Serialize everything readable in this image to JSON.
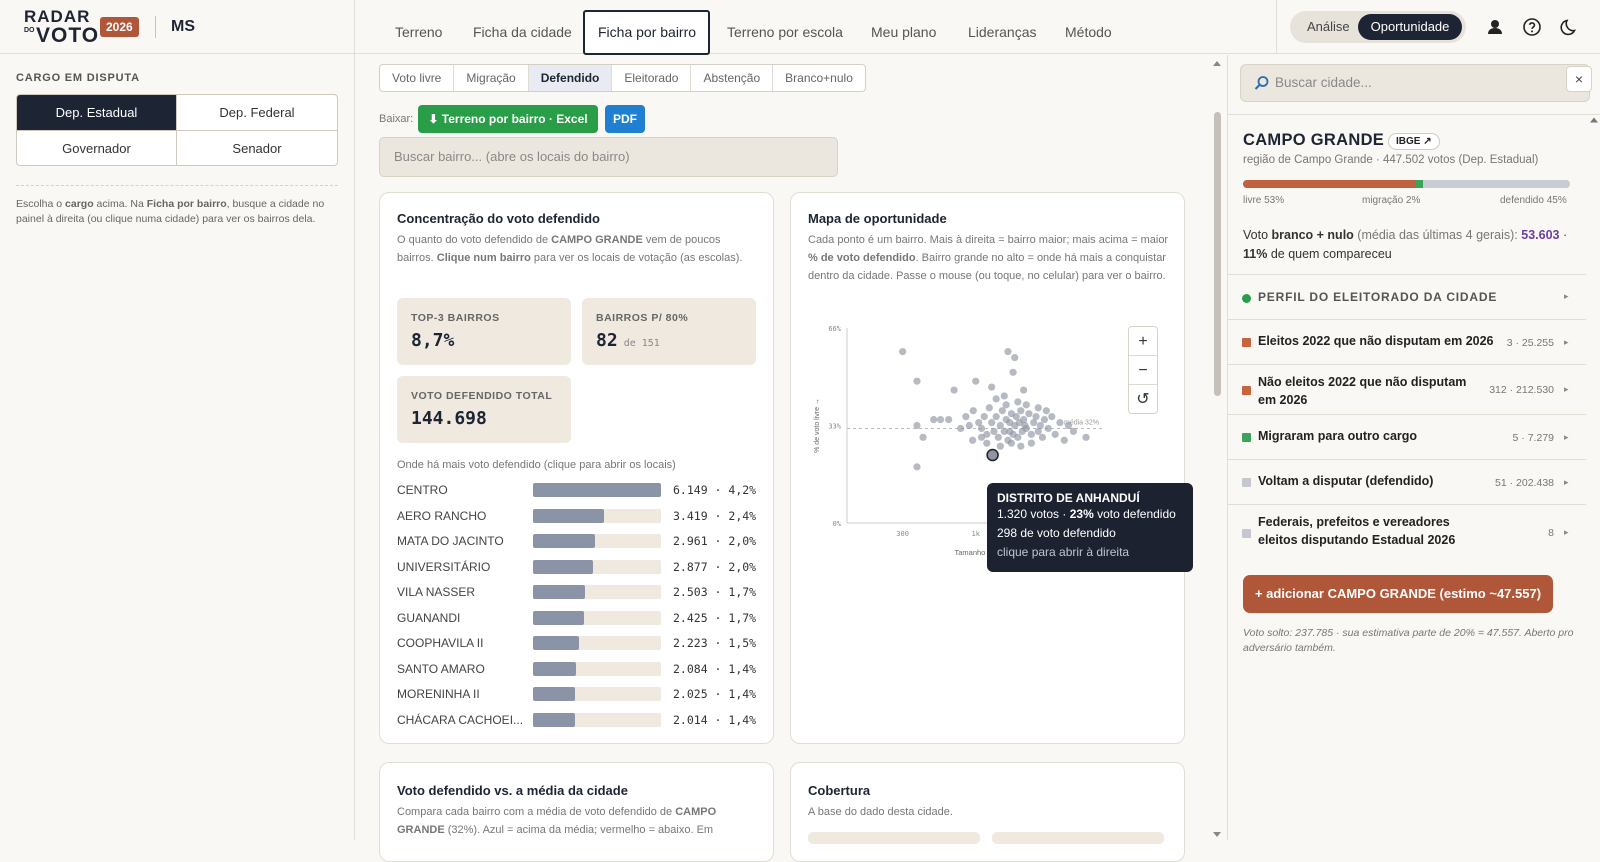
{
  "brand": {
    "logo_line1": "RADAR",
    "logo_line2": "VOTO",
    "logo_small": "DO",
    "year": "2026",
    "state": "MS"
  },
  "nav": {
    "tabs": [
      "Terreno",
      "Ficha da cidade",
      "Ficha por bairro",
      "Terreno por escola",
      "Meu plano",
      "Lideranças",
      "Método"
    ],
    "active": "Ficha por bairro"
  },
  "mode": {
    "option_a": "Análise",
    "option_b": "Oportunidade",
    "selected": "Oportunidade"
  },
  "left": {
    "cargo_heading": "CARGO EM DISPUTA",
    "cargos": [
      "Dep. Estadual",
      "Dep. Federal",
      "Governador",
      "Senador"
    ],
    "cargo_selected": "Dep. Estadual",
    "note_parts": [
      "Escolha o ",
      "cargo",
      " acima. Na ",
      "Ficha por bairro",
      ", busque a cidade no painel à direita (ou clique numa cidade) para ver os bairros dela."
    ]
  },
  "subtabs": {
    "items": [
      "Voto livre",
      "Migração",
      "Defendido",
      "Eleitorado",
      "Abstenção",
      "Branco+nulo"
    ],
    "active": "Defendido"
  },
  "download": {
    "label": "Baixar:",
    "excel": "⬇ Terreno por bairro · Excel",
    "pdf": "PDF"
  },
  "bairro_search": {
    "placeholder": "Buscar bairro... (abre os locais do bairro)"
  },
  "concentracao": {
    "title": "Concentração do voto defendido",
    "desc_parts": [
      "O quanto do voto defendido de ",
      "CAMPO GRANDE",
      " vem de poucos bairros. ",
      "Clique num bairro",
      " para ver os locais de votação (as escolas)."
    ],
    "stats": [
      {
        "label": "TOP-3 BAIRROS",
        "value": "8,7%",
        "sub": ""
      },
      {
        "label": "BAIRROS P/ 80%",
        "value": "82",
        "sub": "de 151"
      },
      {
        "label": "VOTO DEFENDIDO TOTAL",
        "value": "144.698",
        "sub": ""
      }
    ],
    "list_heading": "Onde há mais voto defendido (clique para abrir os locais)",
    "bairros": [
      {
        "name": "CENTRO",
        "votes": "6.149",
        "pct": "4,2%",
        "value": 6149
      },
      {
        "name": "AERO RANCHO",
        "votes": "3.419",
        "pct": "2,4%",
        "value": 3419
      },
      {
        "name": "MATA DO JACINTO",
        "votes": "2.961",
        "pct": "2,0%",
        "value": 2961
      },
      {
        "name": "UNIVERSITÁRIO",
        "votes": "2.877",
        "pct": "2,0%",
        "value": 2877
      },
      {
        "name": "VILA NASSER",
        "votes": "2.503",
        "pct": "1,7%",
        "value": 2503
      },
      {
        "name": "GUANANDI",
        "votes": "2.425",
        "pct": "1,7%",
        "value": 2425
      },
      {
        "name": "COOPHAVILA II",
        "votes": "2.223",
        "pct": "1,5%",
        "value": 2223
      },
      {
        "name": "SANTO AMARO",
        "votes": "2.084",
        "pct": "1,4%",
        "value": 2084
      },
      {
        "name": "MORENINHA II",
        "votes": "2.025",
        "pct": "1,4%",
        "value": 2025
      },
      {
        "name": "CHÁCARA CACHOEI...",
        "votes": "2.014",
        "pct": "1,4%",
        "value": 2014
      }
    ]
  },
  "mapa": {
    "title": "Mapa de oportunidade",
    "desc_parts": [
      "Cada ponto é um bairro. Mais à direita = bairro maior; mais acima = maior ",
      "% de voto defendido",
      ". Bairro grande no alto = onde há mais a conquistar dentro da cidade. Passe o mouse (ou toque, no celular) para ver o bairro."
    ],
    "zoom_in": "+",
    "zoom_out": "−",
    "reset": "↺"
  },
  "chart_data": {
    "type": "scatter",
    "x_scale": "log",
    "xlabel": "Tamanho do b",
    "ylabel": "% de voto livre →",
    "x_ticks": [
      "300",
      "1k"
    ],
    "y_ticks": [
      "0%",
      "33%",
      "66%"
    ],
    "ylim": [
      0,
      66
    ],
    "reference_line": {
      "y": 32,
      "label": "média 32%"
    },
    "points": [
      {
        "x": 300,
        "y": 58
      },
      {
        "x": 380,
        "y": 48
      },
      {
        "x": 700,
        "y": 45
      },
      {
        "x": 1700,
        "y": 58
      },
      {
        "x": 1900,
        "y": 56
      },
      {
        "x": 1850,
        "y": 51
      },
      {
        "x": 1000,
        "y": 48
      },
      {
        "x": 1300,
        "y": 46
      },
      {
        "x": 1600,
        "y": 43
      },
      {
        "x": 2200,
        "y": 45
      },
      {
        "x": 500,
        "y": 35
      },
      {
        "x": 420,
        "y": 29
      },
      {
        "x": 380,
        "y": 33
      },
      {
        "x": 560,
        "y": 35
      },
      {
        "x": 640,
        "y": 35
      },
      {
        "x": 780,
        "y": 32
      },
      {
        "x": 850,
        "y": 36
      },
      {
        "x": 900,
        "y": 33
      },
      {
        "x": 960,
        "y": 38
      },
      {
        "x": 1050,
        "y": 34
      },
      {
        "x": 1100,
        "y": 32
      },
      {
        "x": 1150,
        "y": 36
      },
      {
        "x": 1200,
        "y": 30
      },
      {
        "x": 1250,
        "y": 39
      },
      {
        "x": 1300,
        "y": 34
      },
      {
        "x": 1350,
        "y": 31
      },
      {
        "x": 1400,
        "y": 36
      },
      {
        "x": 1450,
        "y": 29
      },
      {
        "x": 1500,
        "y": 33
      },
      {
        "x": 1550,
        "y": 38
      },
      {
        "x": 1600,
        "y": 31
      },
      {
        "x": 1650,
        "y": 35
      },
      {
        "x": 1700,
        "y": 28
      },
      {
        "x": 1750,
        "y": 34
      },
      {
        "x": 1800,
        "y": 37
      },
      {
        "x": 1850,
        "y": 30
      },
      {
        "x": 1900,
        "y": 33
      },
      {
        "x": 1950,
        "y": 36
      },
      {
        "x": 2000,
        "y": 29
      },
      {
        "x": 2050,
        "y": 34
      },
      {
        "x": 2100,
        "y": 38
      },
      {
        "x": 2150,
        "y": 31
      },
      {
        "x": 2200,
        "y": 35
      },
      {
        "x": 2300,
        "y": 32
      },
      {
        "x": 2400,
        "y": 37
      },
      {
        "x": 2500,
        "y": 30
      },
      {
        "x": 2600,
        "y": 34
      },
      {
        "x": 2700,
        "y": 36
      },
      {
        "x": 2800,
        "y": 31
      },
      {
        "x": 2900,
        "y": 33
      },
      {
        "x": 3000,
        "y": 29
      },
      {
        "x": 3100,
        "y": 35
      },
      {
        "x": 3300,
        "y": 32
      },
      {
        "x": 3500,
        "y": 36
      },
      {
        "x": 3700,
        "y": 30
      },
      {
        "x": 4000,
        "y": 34
      },
      {
        "x": 4300,
        "y": 28
      },
      {
        "x": 4600,
        "y": 33
      },
      {
        "x": 5000,
        "y": 31
      },
      {
        "x": 6149,
        "y": 29
      },
      {
        "x": 1200,
        "y": 27
      },
      {
        "x": 1500,
        "y": 26
      },
      {
        "x": 1800,
        "y": 27
      },
      {
        "x": 2100,
        "y": 26
      },
      {
        "x": 2500,
        "y": 27
      },
      {
        "x": 950,
        "y": 28
      },
      {
        "x": 1100,
        "y": 29
      },
      {
        "x": 1650,
        "y": 40
      },
      {
        "x": 2000,
        "y": 41
      },
      {
        "x": 2300,
        "y": 40
      },
      {
        "x": 1400,
        "y": 42
      },
      {
        "x": 2800,
        "y": 39
      },
      {
        "x": 3200,
        "y": 38
      },
      {
        "x": 1750,
        "y": 31
      },
      {
        "x": 2250,
        "y": 33
      },
      {
        "x": 380,
        "y": 19
      },
      {
        "x": 1320,
        "y": 23
      }
    ],
    "highlight": {
      "name": "DISTRITO DE ANHANDUÍ",
      "x": 1320,
      "y": 23
    }
  },
  "tooltip": {
    "title": "DISTRITO DE ANHANDUÍ",
    "line1_a": "1.320 votos · ",
    "line1_b": "23%",
    "line1_c": " voto defendido",
    "line2": "298 de voto defendido",
    "line3": "clique para abrir à direita"
  },
  "media_card": {
    "title": "Voto defendido vs. a média da cidade",
    "desc_parts": [
      "Compara cada bairro com a média de voto defendido de ",
      "CAMPO GRANDE",
      " (32%). Azul = acima da média; vermelho = abaixo. Em"
    ]
  },
  "cobertura": {
    "title": "Cobertura",
    "desc": "A base do dado desta cidade."
  },
  "right": {
    "search_placeholder": "Buscar cidade...",
    "close": "×",
    "city": "CAMPO GRANDE",
    "ibge": "IBGE ↗",
    "city_info": "região de Campo Grande · 447.502 votos (Dep. Estadual)",
    "composition": [
      {
        "label": "livre 53%",
        "pct": 53,
        "color": "#c0623f"
      },
      {
        "label": "migração 2%",
        "pct": 2,
        "color": "#3aa55a"
      },
      {
        "label": "defendido 45%",
        "pct": 45,
        "color": "#c9ccd3"
      }
    ],
    "bn_parts": [
      "Voto ",
      "branco + nulo",
      " (média das últimas 4 gerais): ",
      "53.603",
      " · ",
      "11%",
      " de quem compareceu"
    ],
    "perfil": "PERFIL DO ELEITORADO DA CIDADE",
    "groups": [
      {
        "title": "Eleitos 2022 que não disputam em 2026",
        "count": "3 · 25.255",
        "color": "#c8643c"
      },
      {
        "title": "Não eleitos 2022 que não disputam em 2026",
        "count": "312 · 212.530",
        "color": "#c8643c"
      },
      {
        "title": "Migraram para outro cargo",
        "count": "5 · 7.279",
        "color": "#3aa55a"
      },
      {
        "title": "Voltam a disputar (defendido)",
        "count": "51 · 202.438",
        "color": "#c4c7cf"
      },
      {
        "title": "Federais, prefeitos e vereadores eleitos disputando Estadual 2026",
        "count": "8",
        "color": "#c4c7cf"
      }
    ],
    "add_button": "+ adicionar CAMPO GRANDE (estimo ~47.557)",
    "solto_note": "Voto solto: 237.785 · sua estimativa parte de 20% = 47.557. Aberto pro adversário também."
  }
}
